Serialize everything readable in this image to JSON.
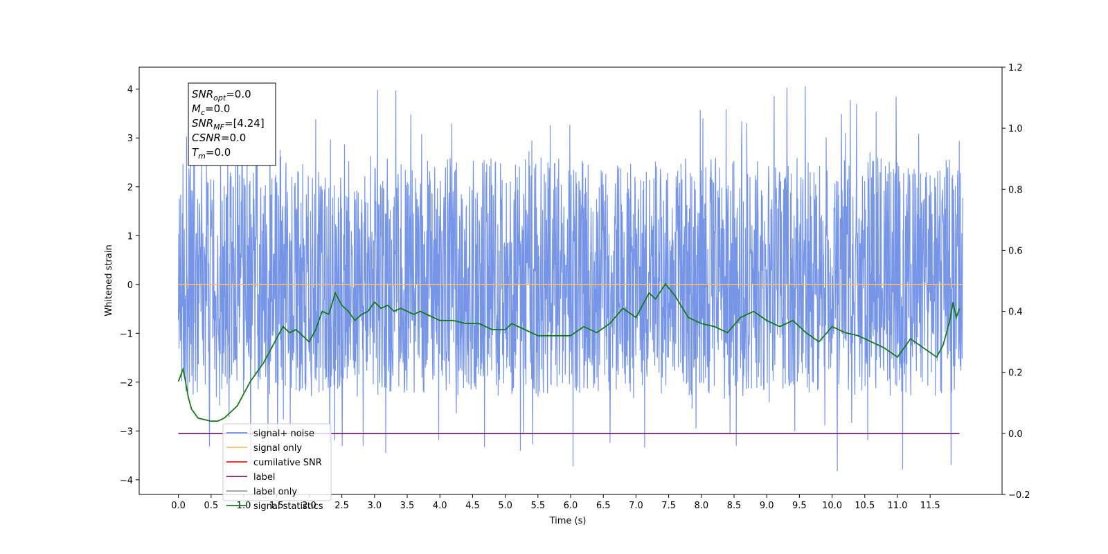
{
  "chart_data": {
    "type": "line",
    "xlabel": "Time (s)",
    "ylabel": "Whitened strain",
    "xlim": [
      -0.6,
      12.6
    ],
    "ylim": [
      -4.3,
      4.45
    ],
    "y2lim": [
      -0.2,
      1.2
    ],
    "x_ticks": [
      "0.0",
      "0.5",
      "1.0",
      "1.5",
      "2.0",
      "2.5",
      "3.0",
      "3.5",
      "4.0",
      "4.5",
      "5.0",
      "5.5",
      "6.0",
      "6.5",
      "7.0",
      "7.5",
      "8.0",
      "8.5",
      "9.0",
      "9.5",
      "10.0",
      "10.5",
      "11.0",
      "11.5"
    ],
    "y_ticks": [
      "4",
      "3",
      "2",
      "1",
      "0",
      "−1",
      "−2",
      "−3",
      "−4"
    ],
    "y2_ticks": [
      "1.2",
      "1.0",
      "0.8",
      "0.6",
      "0.4",
      "0.2",
      "0.0",
      "−0.2"
    ],
    "annotation": [
      {
        "sym": "SNR",
        "sub": "opt",
        "val": "=0.0"
      },
      {
        "sym": "M",
        "sub": "c",
        "val": "=0.0"
      },
      {
        "sym": "SNR",
        "sub": "MF",
        "val": "=[4.24]"
      },
      {
        "sym": "CSNR",
        "sub": "",
        "val": "=0.0"
      },
      {
        "sym": "T",
        "sub": "m",
        "val": "=0.0"
      }
    ],
    "legend_position": "lower-left",
    "legend": [
      {
        "label": "signal+ noise",
        "color": "#6f8fe6"
      },
      {
        "label": "signal only",
        "color": "#ffbf66"
      },
      {
        "label": "cumilative SNR",
        "color": "#e8201c"
      },
      {
        "label": "label",
        "color": "#7b1a7b"
      },
      {
        "label": "label only",
        "color": "#9a9a9a"
      },
      {
        "label": "signal statistics",
        "color": "#157a15"
      }
    ],
    "series": [
      {
        "name": "signal+ noise",
        "axis": "left",
        "color": "#6f8fe6",
        "style": "dense noise band",
        "envelope": {
          "typical_high": 2.6,
          "typical_low": -2.3,
          "max": 4.1,
          "min": -3.85
        },
        "x_range": [
          0.0,
          12.0
        ]
      },
      {
        "name": "signal only",
        "axis": "left",
        "color": "#ffbf66",
        "x": [
          0.0,
          12.0
        ],
        "y": [
          0.0,
          0.0
        ]
      },
      {
        "name": "label",
        "axis": "right",
        "color": "#7b1a7b",
        "x": [
          0.0,
          11.95
        ],
        "y": [
          0.0,
          0.0
        ]
      },
      {
        "name": "signal statistics",
        "axis": "right",
        "color": "#157a15",
        "x": [
          0.0,
          0.07,
          0.1,
          0.15,
          0.2,
          0.3,
          0.4,
          0.5,
          0.6,
          0.7,
          0.8,
          0.9,
          1.0,
          1.1,
          1.2,
          1.3,
          1.4,
          1.5,
          1.6,
          1.7,
          1.8,
          1.9,
          2.0,
          2.1,
          2.2,
          2.3,
          2.4,
          2.5,
          2.6,
          2.7,
          2.8,
          2.9,
          3.0,
          3.1,
          3.2,
          3.3,
          3.4,
          3.5,
          3.6,
          3.7,
          3.8,
          3.9,
          4.0,
          4.2,
          4.4,
          4.6,
          4.8,
          5.0,
          5.1,
          5.3,
          5.5,
          5.7,
          5.9,
          6.0,
          6.2,
          6.4,
          6.6,
          6.8,
          7.0,
          7.2,
          7.3,
          7.45,
          7.6,
          7.8,
          8.0,
          8.2,
          8.4,
          8.6,
          8.8,
          9.0,
          9.2,
          9.4,
          9.6,
          9.8,
          10.0,
          10.2,
          10.4,
          10.6,
          10.8,
          11.0,
          11.1,
          11.2,
          11.4,
          11.6,
          11.7,
          11.8,
          11.85,
          11.9,
          11.95
        ],
        "y": [
          0.17,
          0.21,
          0.18,
          0.12,
          0.08,
          0.05,
          0.045,
          0.04,
          0.04,
          0.05,
          0.07,
          0.09,
          0.13,
          0.17,
          0.2,
          0.23,
          0.27,
          0.31,
          0.35,
          0.33,
          0.34,
          0.32,
          0.3,
          0.34,
          0.4,
          0.39,
          0.46,
          0.42,
          0.4,
          0.37,
          0.39,
          0.4,
          0.43,
          0.41,
          0.42,
          0.4,
          0.41,
          0.4,
          0.39,
          0.4,
          0.39,
          0.38,
          0.37,
          0.37,
          0.36,
          0.36,
          0.34,
          0.34,
          0.36,
          0.34,
          0.32,
          0.32,
          0.32,
          0.32,
          0.35,
          0.33,
          0.36,
          0.41,
          0.38,
          0.46,
          0.44,
          0.49,
          0.45,
          0.38,
          0.36,
          0.35,
          0.33,
          0.38,
          0.4,
          0.37,
          0.35,
          0.37,
          0.33,
          0.3,
          0.35,
          0.33,
          0.32,
          0.3,
          0.28,
          0.25,
          0.28,
          0.31,
          0.28,
          0.25,
          0.29,
          0.37,
          0.43,
          0.38,
          0.41
        ]
      }
    ]
  }
}
